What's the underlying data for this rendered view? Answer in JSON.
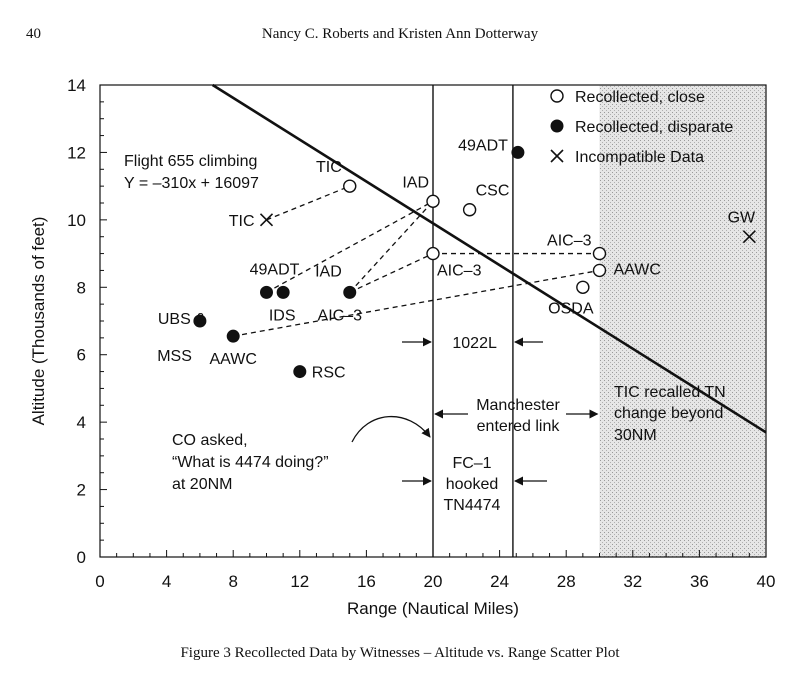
{
  "header": {
    "page_number": "40",
    "authors": "Nancy C. Roberts and Kristen Ann Dotterway"
  },
  "caption": "Figure 3  Recollected Data by Witnesses – Altitude vs. Range Scatter Plot",
  "chart_data": {
    "type": "scatter",
    "xlabel": "Range (Nautical Miles)",
    "ylabel": "Altitude (Thousands of feet)",
    "xlim": [
      0,
      40
    ],
    "ylim": [
      0,
      14
    ],
    "xticks": [
      "0",
      "4",
      "8",
      "12",
      "16",
      "20",
      "24",
      "28",
      "32",
      "36",
      "40"
    ],
    "yticks": [
      "0",
      "2",
      "4",
      "6",
      "8",
      "10",
      "12",
      "14"
    ],
    "legend_position": "top-right",
    "legend": [
      {
        "key": "close",
        "label": "Recollected, close"
      },
      {
        "key": "disparate",
        "label": "Recollected, disparate"
      },
      {
        "key": "incompatible",
        "label": "Incompatible Data"
      }
    ],
    "flight_line": {
      "label_line1": "Flight 655 climbing",
      "label_line2": "Y = –310x + 16097",
      "slope": -0.31,
      "intercept": 16.097
    },
    "shaded_region": {
      "x_from": 30,
      "x_to": 40,
      "color": "#d8d8d8"
    },
    "vlines": [
      20,
      24.8
    ],
    "points": [
      {
        "type": "close",
        "x": 15,
        "y": 11,
        "label": "TIC"
      },
      {
        "type": "close",
        "x": 20,
        "y": 10.55,
        "label": "IAD"
      },
      {
        "type": "close",
        "x": 22.2,
        "y": 10.3,
        "label": "CSC"
      },
      {
        "type": "close",
        "x": 20,
        "y": 9,
        "label": "AIC–3"
      },
      {
        "type": "close",
        "x": 30,
        "y": 9,
        "label": "AIC–3"
      },
      {
        "type": "close",
        "x": 30,
        "y": 8.5,
        "label": "AAWC"
      },
      {
        "type": "close",
        "x": 29,
        "y": 8,
        "label": "OSDA"
      },
      {
        "type": "disparate",
        "x": 25.1,
        "y": 12,
        "label": "49ADT"
      },
      {
        "type": "disparate",
        "x": 10,
        "y": 7.85,
        "label": "49ADT"
      },
      {
        "type": "disparate",
        "x": 11,
        "y": 7.85,
        "label": "IDS"
      },
      {
        "type": "disparate",
        "x": 15,
        "y": 7.85,
        "label": "IAD"
      },
      {
        "type": "disparate",
        "x": 6,
        "y": 7,
        "label": "UBS &"
      },
      {
        "type": "disparate",
        "x": 8,
        "y": 6.55,
        "label": "AAWC"
      },
      {
        "type": "disparate",
        "x": 12,
        "y": 5.5,
        "label": "RSC"
      },
      {
        "type": "incompatible",
        "x": 10,
        "y": 10,
        "label": "TIC"
      },
      {
        "type": "incompatible",
        "x": 39,
        "y": 9.5,
        "label": "GW"
      }
    ],
    "extra_labels": {
      "aic3_near_iad": "AIC–3",
      "mss": "MSS"
    },
    "dashed_links": [
      [
        10,
        10,
        15,
        11
      ],
      [
        10,
        7.85,
        20,
        10.55
      ],
      [
        15,
        7.85,
        20,
        10.55
      ],
      [
        15,
        7.85,
        20,
        9
      ],
      [
        20,
        9,
        30,
        9
      ],
      [
        8,
        6.55,
        30,
        8.5
      ]
    ],
    "annotations": {
      "range_1022l": "1022L",
      "manchester_line1": "Manchester",
      "manchester_line2": "entered link",
      "co_asked_line1": "CO asked,",
      "co_asked_line2": "“What is 4474 doing?”",
      "co_asked_line3": "at 20NM",
      "fc1_line1": "FC–1",
      "fc1_line2": "hooked",
      "fc1_line3": "TN4474",
      "tic_recalled_line1": "TIC recalled TN",
      "tic_recalled_line2": "change beyond",
      "tic_recalled_line3": "30NM"
    }
  }
}
